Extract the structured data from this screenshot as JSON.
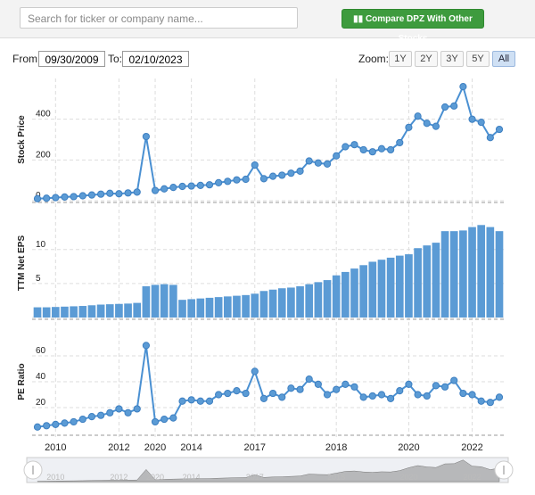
{
  "search_placeholder": "Search for ticker or company name...",
  "compare_button": "Compare DPZ With Other Stocks",
  "range": {
    "from_label": "From:",
    "from": "09/30/2009",
    "to_label": "To:",
    "to": "02/10/2023"
  },
  "zoom": {
    "label": "Zoom:",
    "buttons": [
      "1Y",
      "2Y",
      "3Y",
      "5Y",
      "All"
    ],
    "active": "All"
  },
  "chart_data": [
    {
      "type": "line",
      "y_label": "Stock Price",
      "color": "#4a90d2",
      "values": [
        10,
        12,
        15,
        18,
        20,
        24,
        28,
        32,
        36,
        34,
        38,
        42,
        315,
        50,
        58,
        65,
        70,
        72,
        75,
        78,
        88,
        95,
        102,
        105,
        175,
        108,
        120,
        125,
        135,
        145,
        195,
        185,
        180,
        220,
        265,
        275,
        250,
        240,
        255,
        250,
        285,
        360,
        415,
        380,
        365,
        460,
        465,
        560,
        400,
        385,
        310,
        350
      ],
      "ylim": [
        0,
        600
      ],
      "yticks": [
        0,
        200,
        400
      ],
      "grid": true
    },
    {
      "type": "bar",
      "y_label": "TTM Net EPS",
      "color": "#5b9bd5",
      "values": [
        1.5,
        1.5,
        1.55,
        1.6,
        1.65,
        1.7,
        1.8,
        1.9,
        1.95,
        2.0,
        2.05,
        2.15,
        4.6,
        4.8,
        4.9,
        4.8,
        2.6,
        2.7,
        2.8,
        2.9,
        3.0,
        3.1,
        3.2,
        3.3,
        3.5,
        3.9,
        4.1,
        4.3,
        4.4,
        4.6,
        4.9,
        5.2,
        5.5,
        6.2,
        6.7,
        7.2,
        7.7,
        8.2,
        8.5,
        8.8,
        9.1,
        9.3,
        10.2,
        10.6,
        11.0,
        12.7,
        12.7,
        12.8,
        13.3,
        13.6,
        13.3,
        12.7
      ],
      "ylim": [
        0,
        16
      ],
      "yticks": [
        0,
        5,
        10
      ],
      "grid": true
    },
    {
      "type": "line",
      "y_label": "PE Ratio",
      "color": "#4a90d2",
      "values": [
        5,
        6,
        7,
        8,
        9,
        11,
        13,
        14,
        16,
        19,
        16,
        19,
        68,
        9,
        11,
        12,
        25,
        26,
        25,
        25,
        30,
        31,
        33,
        31,
        48,
        27,
        31,
        28,
        35,
        34,
        42,
        38,
        30,
        34,
        38,
        36,
        28,
        29,
        30,
        27,
        33,
        38,
        30,
        29,
        37,
        36,
        41,
        31,
        30,
        25,
        24,
        28
      ],
      "ylim": [
        0,
        80
      ],
      "yticks": [
        20,
        40,
        60
      ],
      "grid": true,
      "categories": [
        null,
        null,
        "2010",
        null,
        null,
        null,
        null,
        null,
        null,
        "2012",
        null,
        null,
        null,
        "2020",
        null,
        null,
        null,
        "2014",
        null,
        null,
        null,
        null,
        null,
        null,
        "2017",
        null,
        null,
        null,
        null,
        null,
        null,
        null,
        null,
        "2018",
        null,
        null,
        null,
        null,
        null,
        null,
        null,
        "2020",
        null,
        null,
        null,
        null,
        null,
        null,
        "2022",
        null,
        null,
        null
      ]
    }
  ]
}
